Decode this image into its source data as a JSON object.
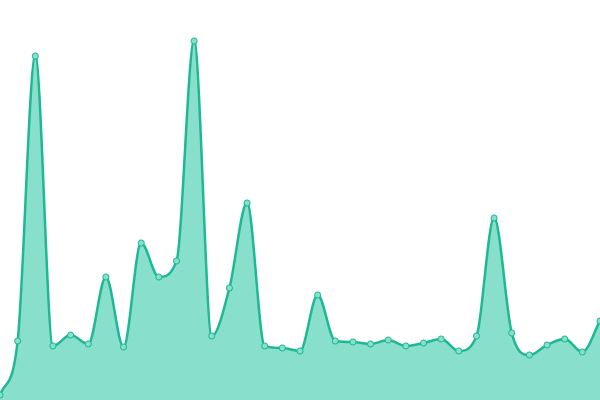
{
  "chart_data": {
    "type": "area",
    "values": [
      5,
      59,
      344,
      54,
      65,
      56,
      123,
      53,
      157,
      123,
      139,
      359,
      64,
      112,
      197,
      54,
      52,
      49,
      105,
      59,
      58,
      56,
      60,
      54,
      57,
      61,
      49,
      64,
      182,
      67,
      45,
      55,
      61,
      48,
      79
    ],
    "color": "#1fb894",
    "fill": "#88e0cc"
  }
}
